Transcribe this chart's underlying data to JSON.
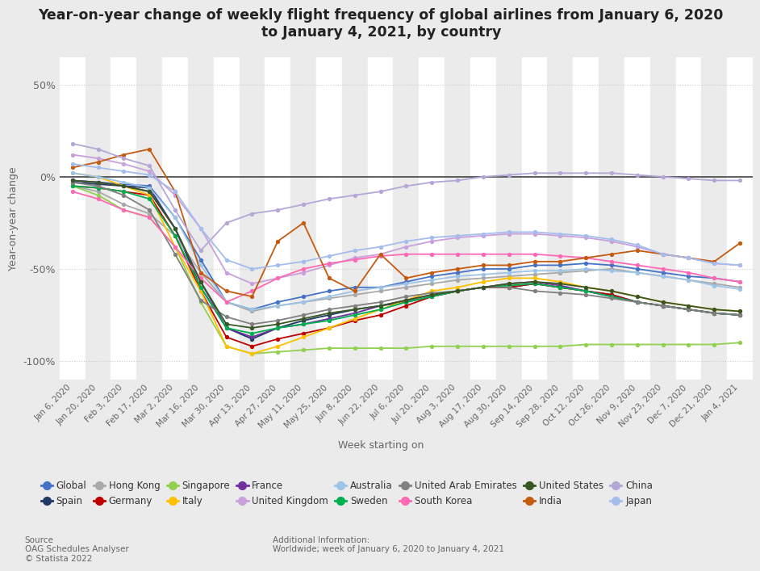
{
  "title": "Year-on-year change of weekly flight frequency of global airlines from January 6, 2020\nto January 4, 2021, by country",
  "xlabel": "Week starting on",
  "ylabel": "Year-on-year change",
  "background_color": "#ebebeb",
  "ylim": [
    -110,
    65
  ],
  "yticks": [
    -100,
    -50,
    0,
    50
  ],
  "ytick_labels": [
    "-100%",
    "-50%",
    "0%",
    "50%"
  ],
  "x_labels": [
    "Jan 6, 2020",
    "Jan 20, 2020",
    "Feb 3, 2020",
    "Feb 17, 2020",
    "Mar 2, 2020",
    "Mar 16, 2020",
    "Mar 30, 2020",
    "Apr 13, 2020",
    "Apr 27, 2020",
    "May 11, 2020",
    "May 25, 2020",
    "Jun 8, 2020",
    "Jun 22, 2020",
    "Jul 6, 2020",
    "Jul 20, 2020",
    "Aug 3, 2020",
    "Aug 17, 2020",
    "Aug 30, 2020",
    "Sep 14, 2020",
    "Sep 28, 2020",
    "Oct 12, 2020",
    "Oct 26, 2020",
    "Nov 9, 2020",
    "Nov 23, 2020",
    "Dec 7, 2020",
    "Dec 21, 2020",
    "Jan 4, 2021"
  ],
  "series": {
    "Global": {
      "color": "#4472C4",
      "data": [
        -2,
        -3,
        -4,
        -5,
        -22,
        -45,
        -68,
        -72,
        -68,
        -65,
        -62,
        -60,
        -60,
        -57,
        -54,
        -52,
        -50,
        -50,
        -48,
        -48,
        -47,
        -48,
        -50,
        -52,
        -54,
        -55,
        -57
      ]
    },
    "Spain": {
      "color": "#1F3864",
      "data": [
        -3,
        -4,
        -5,
        -6,
        -28,
        -60,
        -82,
        -88,
        -82,
        -78,
        -75,
        -72,
        -70,
        -68,
        -65,
        -62,
        -60,
        -60,
        -58,
        -60,
        -62,
        -64,
        -68,
        -70,
        -72,
        -74,
        -75
      ]
    },
    "Hong Kong": {
      "color": "#A9A9A9",
      "data": [
        -5,
        -8,
        -15,
        -20,
        -32,
        -52,
        -68,
        -73,
        -70,
        -68,
        -66,
        -64,
        -62,
        -60,
        -58,
        -56,
        -55,
        -54,
        -53,
        -52,
        -51,
        -50,
        -52,
        -54,
        -56,
        -58,
        -60
      ]
    },
    "Germany": {
      "color": "#C00000",
      "data": [
        -5,
        -6,
        -8,
        -10,
        -32,
        -62,
        -87,
        -92,
        -88,
        -85,
        -82,
        -78,
        -75,
        -70,
        -65,
        -62,
        -60,
        -60,
        -58,
        -60,
        -62,
        -64,
        -68,
        -70,
        -72,
        -74,
        -75
      ]
    },
    "Singapore": {
      "color": "#92D050",
      "data": [
        -5,
        -10,
        -18,
        -22,
        -38,
        -68,
        -92,
        -96,
        -95,
        -94,
        -93,
        -93,
        -93,
        -93,
        -92,
        -92,
        -92,
        -92,
        -92,
        -92,
        -91,
        -91,
        -91,
        -91,
        -91,
        -91,
        -90
      ]
    },
    "Italy": {
      "color": "#FFC000",
      "data": [
        2,
        0,
        -5,
        -10,
        -38,
        -62,
        -92,
        -96,
        -92,
        -87,
        -82,
        -77,
        -72,
        -67,
        -62,
        -60,
        -57,
        -55,
        -55,
        -57,
        -60,
        -62,
        -65,
        -68,
        -70,
        -72,
        -73
      ]
    },
    "France": {
      "color": "#7030A0",
      "data": [
        -2,
        -3,
        -5,
        -8,
        -28,
        -57,
        -82,
        -87,
        -82,
        -80,
        -77,
        -74,
        -70,
        -67,
        -64,
        -62,
        -60,
        -58,
        -57,
        -59,
        -62,
        -65,
        -68,
        -70,
        -72,
        -74,
        -75
      ]
    },
    "United Kingdom": {
      "color": "#C9A0DC",
      "data": [
        12,
        10,
        7,
        3,
        -10,
        -28,
        -52,
        -58,
        -55,
        -52,
        -48,
        -44,
        -42,
        -38,
        -35,
        -33,
        -32,
        -31,
        -31,
        -32,
        -33,
        -35,
        -38,
        -42,
        -44,
        -47,
        -48
      ]
    },
    "Australia": {
      "color": "#9DC3E6",
      "data": [
        2,
        0,
        -3,
        -6,
        -22,
        -48,
        -68,
        -72,
        -70,
        -68,
        -65,
        -62,
        -60,
        -58,
        -56,
        -54,
        -53,
        -52,
        -51,
        -51,
        -50,
        -51,
        -52,
        -54,
        -56,
        -59,
        -61
      ]
    },
    "Sweden": {
      "color": "#00B050",
      "data": [
        -5,
        -6,
        -8,
        -12,
        -32,
        -60,
        -82,
        -85,
        -82,
        -80,
        -78,
        -75,
        -72,
        -68,
        -65,
        -62,
        -60,
        -59,
        -58,
        -60,
        -62,
        -65,
        -68,
        -70,
        -72,
        -74,
        -75
      ]
    },
    "United Arab Emirates": {
      "color": "#808080",
      "data": [
        -3,
        -5,
        -10,
        -18,
        -42,
        -67,
        -76,
        -80,
        -78,
        -75,
        -72,
        -70,
        -68,
        -65,
        -63,
        -62,
        -60,
        -60,
        -62,
        -63,
        -64,
        -66,
        -68,
        -70,
        -72,
        -74,
        -75
      ]
    },
    "South Korea": {
      "color": "#FF69B4",
      "data": [
        -8,
        -12,
        -18,
        -22,
        -38,
        -55,
        -68,
        -62,
        -55,
        -50,
        -47,
        -45,
        -43,
        -42,
        -42,
        -42,
        -42,
        -42,
        -42,
        -43,
        -44,
        -46,
        -48,
        -50,
        -52,
        -55,
        -57
      ]
    },
    "United States": {
      "color": "#375623",
      "data": [
        -2,
        -3,
        -5,
        -8,
        -28,
        -57,
        -80,
        -82,
        -80,
        -77,
        -74,
        -72,
        -70,
        -67,
        -64,
        -62,
        -60,
        -58,
        -57,
        -58,
        -60,
        -62,
        -65,
        -68,
        -70,
        -72,
        -73
      ]
    },
    "India": {
      "color": "#C55A11",
      "data": [
        5,
        8,
        12,
        15,
        -8,
        -52,
        -62,
        -65,
        -35,
        -25,
        -55,
        -62,
        -42,
        -55,
        -52,
        -50,
        -48,
        -48,
        -46,
        -46,
        -44,
        -42,
        -40,
        -42,
        -44,
        -46,
        -36
      ]
    },
    "China": {
      "color": "#B4A7D6",
      "data": [
        18,
        15,
        10,
        6,
        -18,
        -40,
        -25,
        -20,
        -18,
        -15,
        -12,
        -10,
        -8,
        -5,
        -3,
        -2,
        0,
        1,
        2,
        2,
        2,
        2,
        1,
        0,
        -1,
        -2,
        -2
      ]
    },
    "Japan": {
      "color": "#A4BDEC",
      "data": [
        7,
        5,
        3,
        1,
        -8,
        -28,
        -45,
        -50,
        -48,
        -46,
        -43,
        -40,
        -38,
        -35,
        -33,
        -32,
        -31,
        -30,
        -30,
        -31,
        -32,
        -34,
        -37,
        -42,
        -44,
        -47,
        -48
      ]
    }
  },
  "source_text": "Source\nOAG Schedules Analyser\n© Statista 2022",
  "additional_info": "Additional Information:\nWorldwide; week of January 6, 2020 to January 4, 2021",
  "legend_order": [
    "Global",
    "Spain",
    "Hong Kong",
    "Germany",
    "Singapore",
    "Italy",
    "France",
    "United Kingdom",
    "Australia",
    "Sweden",
    "United Arab Emirates",
    "South Korea",
    "United States",
    "India",
    "China",
    "Japan"
  ]
}
